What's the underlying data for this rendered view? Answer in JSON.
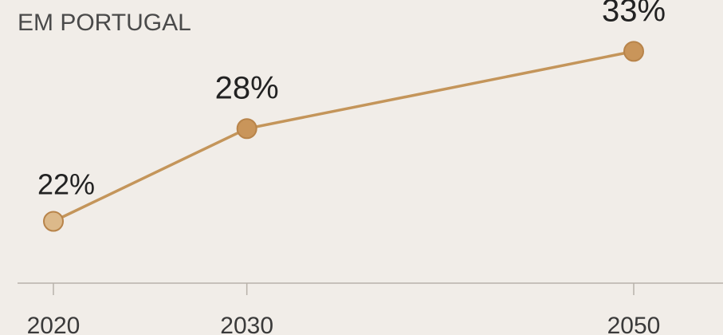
{
  "chart_data": {
    "type": "line",
    "title": "EM PORTUGAL",
    "x": [
      2020,
      2030,
      2050
    ],
    "tick_labels": [
      "2020",
      "2030",
      "2050"
    ],
    "values": [
      22,
      28,
      33
    ],
    "data_labels": [
      "22%",
      "28%",
      "33%"
    ],
    "ylim": [
      18,
      34
    ],
    "grid": false,
    "legend": "none",
    "colors": {
      "line": "#c4955a",
      "marker_fill": "#c9955a",
      "marker_fill_first": "#dcb98a",
      "marker_stroke": "#b8844a",
      "axis": "#b8b2aa",
      "background": "#f1ede8"
    }
  }
}
